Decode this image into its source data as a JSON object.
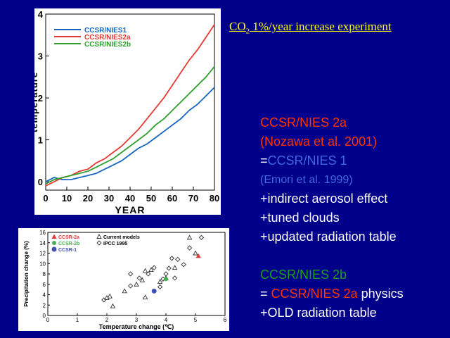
{
  "slide": {
    "title_main": "CO",
    "title_sub": "2",
    "title_rest": " 1%/year increase experiment",
    "description": {
      "line1": "CCSR/NIES 2a",
      "line2": "(Nozawa et al. 2001)",
      "line3_prefix": "=",
      "line3_model": "CCSR/NIES 1",
      "line4": " (Emori et al. 1999)",
      "line5": "+indirect aerosol effect",
      "line6": "+tuned clouds",
      "line7": "+updated radiation table",
      "line8": "CCSR/NIES 2b",
      "line9_prefix": "= ",
      "line9_model": "CCSR/NIES 2a",
      "line9_suffix": " physics",
      "line10": "+OLD radiation table"
    }
  },
  "colors": {
    "background": "#00008b",
    "title": "#ffff00",
    "red": "#ff3300",
    "blue": "#4169e1",
    "green": "#1e9e1e"
  },
  "chart_data": [
    {
      "type": "line",
      "title": "",
      "xlabel": "YEAR",
      "ylabel": "temperature",
      "xlim": [
        0,
        80
      ],
      "ylim": [
        -0.2,
        4
      ],
      "xticks": [
        "0",
        "10",
        "20",
        "30",
        "40",
        "50",
        "60",
        "70",
        "80"
      ],
      "yticks": [
        "0",
        "1",
        "2",
        "3",
        "4"
      ],
      "legend_position": "top-left",
      "series": [
        {
          "name": "CCSR/NIES1",
          "color": "#1565c0",
          "x": [
            0,
            4,
            8,
            12,
            16,
            20,
            24,
            28,
            32,
            36,
            40,
            44,
            48,
            52,
            56,
            60,
            64,
            68,
            72,
            76,
            80
          ],
          "y": [
            0.0,
            0.1,
            0.05,
            0.05,
            0.1,
            0.15,
            0.2,
            0.3,
            0.4,
            0.5,
            0.65,
            0.8,
            0.9,
            1.05,
            1.2,
            1.35,
            1.5,
            1.7,
            1.85,
            2.05,
            2.25
          ]
        },
        {
          "name": "CCSR/NIES2a",
          "color": "#e53935",
          "x": [
            0,
            4,
            8,
            12,
            16,
            20,
            24,
            28,
            32,
            36,
            40,
            44,
            48,
            52,
            56,
            60,
            64,
            68,
            72,
            76,
            80
          ],
          "y": [
            -0.1,
            0.0,
            0.1,
            0.15,
            0.25,
            0.3,
            0.45,
            0.55,
            0.7,
            0.85,
            1.05,
            1.25,
            1.5,
            1.75,
            2.0,
            2.3,
            2.6,
            2.9,
            3.15,
            3.45,
            3.75
          ]
        },
        {
          "name": "CCSR/NIES2b",
          "color": "#2e9e2e",
          "x": [
            0,
            4,
            8,
            12,
            16,
            20,
            24,
            28,
            32,
            36,
            40,
            44,
            48,
            52,
            56,
            60,
            64,
            68,
            72,
            76,
            80
          ],
          "y": [
            -0.05,
            0.05,
            0.1,
            0.15,
            0.2,
            0.25,
            0.35,
            0.45,
            0.55,
            0.7,
            0.85,
            1.0,
            1.15,
            1.35,
            1.5,
            1.7,
            1.9,
            2.1,
            2.3,
            2.5,
            2.75
          ]
        }
      ]
    },
    {
      "type": "scatter",
      "title": "",
      "xlabel": "Temperature change (℃)",
      "ylabel": "Precipitation change (%)",
      "xlim": [
        0,
        6
      ],
      "ylim": [
        0,
        16
      ],
      "xticks": [
        "0",
        "1",
        "2",
        "3",
        "4",
        "5",
        "6"
      ],
      "yticks": [
        "0",
        "2",
        "4",
        "6",
        "8",
        "10",
        "12",
        "14",
        "16"
      ],
      "legend_position": "top-left",
      "legend": [
        "CCSR-2a",
        "CCSR-2b",
        "CCSR-1",
        "Current models",
        "IPCC 1995"
      ],
      "series": [
        {
          "name": "CCSR-2a",
          "color": "#e53935",
          "points": [
            [
              5.1,
              11.5
            ]
          ]
        },
        {
          "name": "CCSR-2b",
          "color": "#4caf50",
          "points": [
            [
              4.0,
              7.0
            ]
          ]
        },
        {
          "name": "CCSR-1",
          "color": "#3f51b5",
          "points": [
            [
              3.6,
              4.7
            ]
          ]
        },
        {
          "name": "Current models",
          "color": "#333333",
          "points": [
            [
              2.2,
              1.8
            ],
            [
              2.0,
              3.4
            ],
            [
              2.1,
              3.7
            ],
            [
              2.6,
              4.7
            ],
            [
              3.0,
              6.0
            ],
            [
              3.3,
              3.5
            ],
            [
              3.3,
              8.6
            ],
            [
              3.5,
              8.8
            ],
            [
              4.0,
              7.2
            ],
            [
              3.2,
              6.8
            ],
            [
              4.3,
              9.2
            ],
            [
              4.8,
              15.0
            ],
            [
              5.0,
              12.0
            ],
            [
              3.8,
              6.5
            ]
          ]
        },
        {
          "name": "IPCC 1995",
          "color": "#333333",
          "points": [
            [
              1.9,
              3.0
            ],
            [
              2.8,
              5.7
            ],
            [
              2.8,
              8.0
            ],
            [
              3.1,
              7.2
            ],
            [
              3.4,
              8.0
            ],
            [
              3.6,
              9.2
            ],
            [
              3.8,
              5.5
            ],
            [
              4.0,
              8.0
            ],
            [
              4.1,
              9.1
            ],
            [
              4.2,
              11.0
            ],
            [
              4.4,
              10.8
            ],
            [
              4.6,
              9.8
            ],
            [
              4.8,
              13.0
            ],
            [
              5.2,
              15.0
            ],
            [
              3.9,
              7.0
            ],
            [
              4.3,
              7.2
            ]
          ]
        }
      ]
    }
  ]
}
